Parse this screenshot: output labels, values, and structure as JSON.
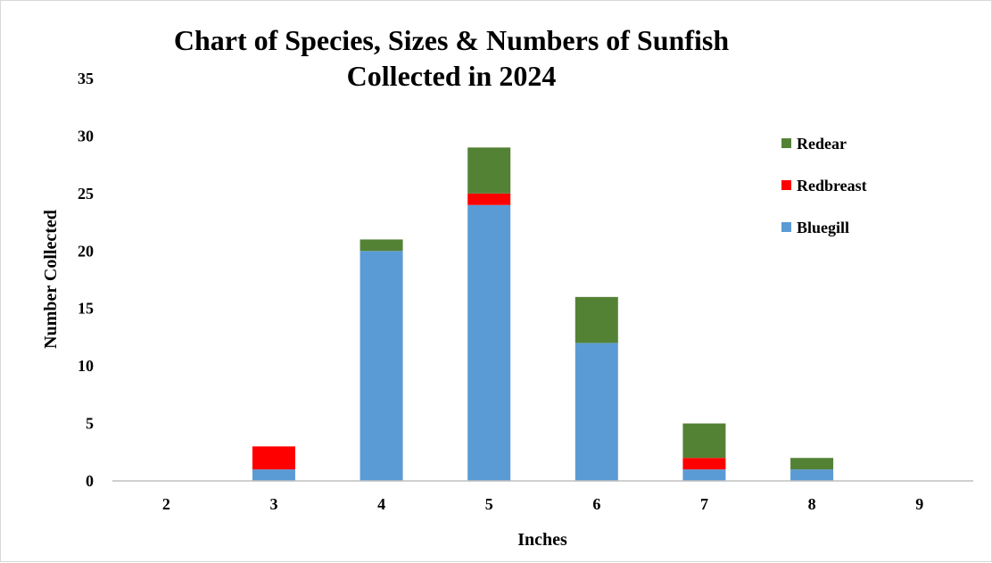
{
  "chart_data": {
    "type": "bar",
    "stacked": true,
    "title_line1": "Chart of Species, Sizes & Numbers of Sunfish",
    "title_line2": "Collected in 2024",
    "xlabel": "Inches",
    "ylabel": "Number Collected",
    "categories": [
      "2",
      "3",
      "4",
      "5",
      "6",
      "7",
      "8",
      "9"
    ],
    "ylim": [
      0,
      35
    ],
    "yticks": [
      0,
      5,
      10,
      15,
      20,
      25,
      30,
      35
    ],
    "grid": false,
    "legend_position": "right",
    "series": [
      {
        "name": "Bluegill",
        "color": "#5B9BD5",
        "values": [
          0,
          1,
          20,
          24,
          12,
          1,
          1,
          0
        ]
      },
      {
        "name": "Redbreast",
        "color": "#FF0000",
        "values": [
          0,
          2,
          0,
          1,
          0,
          1,
          0,
          0
        ]
      },
      {
        "name": "Redear",
        "color": "#548235",
        "values": [
          0,
          0,
          1,
          4,
          4,
          3,
          1,
          0
        ]
      }
    ]
  }
}
